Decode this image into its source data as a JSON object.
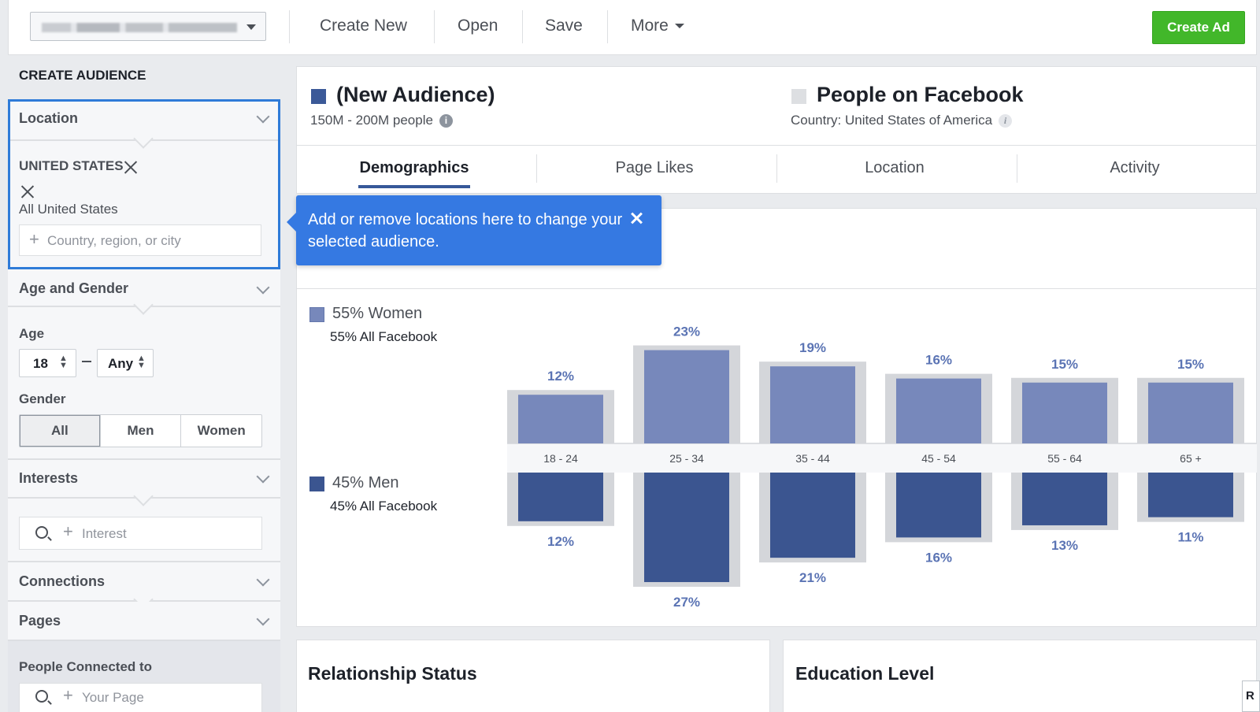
{
  "toolbar": {
    "create_new": "Create New",
    "open": "Open",
    "save": "Save",
    "more": "More",
    "create_ad": "Create Ad"
  },
  "sidebar": {
    "title": "CREATE AUDIENCE",
    "location": {
      "label": "Location",
      "country": "UNITED STATES",
      "scope": "All United States",
      "placeholder": "Country, region, or city"
    },
    "age_gender": {
      "label": "Age and Gender",
      "age_label": "Age",
      "age_min": "18",
      "age_max": "Any",
      "gender_label": "Gender",
      "gender_options": [
        "All",
        "Men",
        "Women"
      ],
      "gender_selected": "All"
    },
    "interests": {
      "label": "Interests",
      "placeholder": "Interest"
    },
    "connections": {
      "label": "Connections"
    },
    "pages": {
      "label": "Pages",
      "people_connected": "People Connected to",
      "placeholder": "Your Page"
    }
  },
  "audience": {
    "title": "(New Audience)",
    "size": "150M - 200M people",
    "color": "#3b5998"
  },
  "comparison": {
    "title": "People on Facebook",
    "subtitle": "Country: United States of America",
    "color": "#dddfe2"
  },
  "tabs": [
    "Demographics",
    "Page Likes",
    "Location",
    "Activity"
  ],
  "active_tab": "Demographics",
  "tooltip": {
    "text": "Add or remove locations here to change your selected audience."
  },
  "chart_data": {
    "type": "bar",
    "categories": [
      "18 - 24",
      "25 - 34",
      "35 - 44",
      "45 - 54",
      "55 - 64",
      "65 +"
    ],
    "series": [
      {
        "name": "Women",
        "values": [
          12,
          23,
          19,
          16,
          15,
          15
        ],
        "color": "#7788bb"
      },
      {
        "name": "Men",
        "values": [
          12,
          27,
          21,
          16,
          13,
          11
        ],
        "color": "#3b5590"
      }
    ],
    "facebook_baseline": {
      "Women": [
        12,
        23,
        19,
        16,
        15,
        15
      ],
      "Men": [
        12,
        27,
        21,
        16,
        13,
        11
      ],
      "color": "#d4d6da"
    },
    "women_legend": "55% Women",
    "women_fb": "55% All Facebook",
    "men_legend": "45% Men",
    "men_fb": "45% All Facebook"
  },
  "bottom_cards": {
    "relationship": "Relationship Status",
    "education": "Education Level"
  },
  "corner_tag": "R"
}
